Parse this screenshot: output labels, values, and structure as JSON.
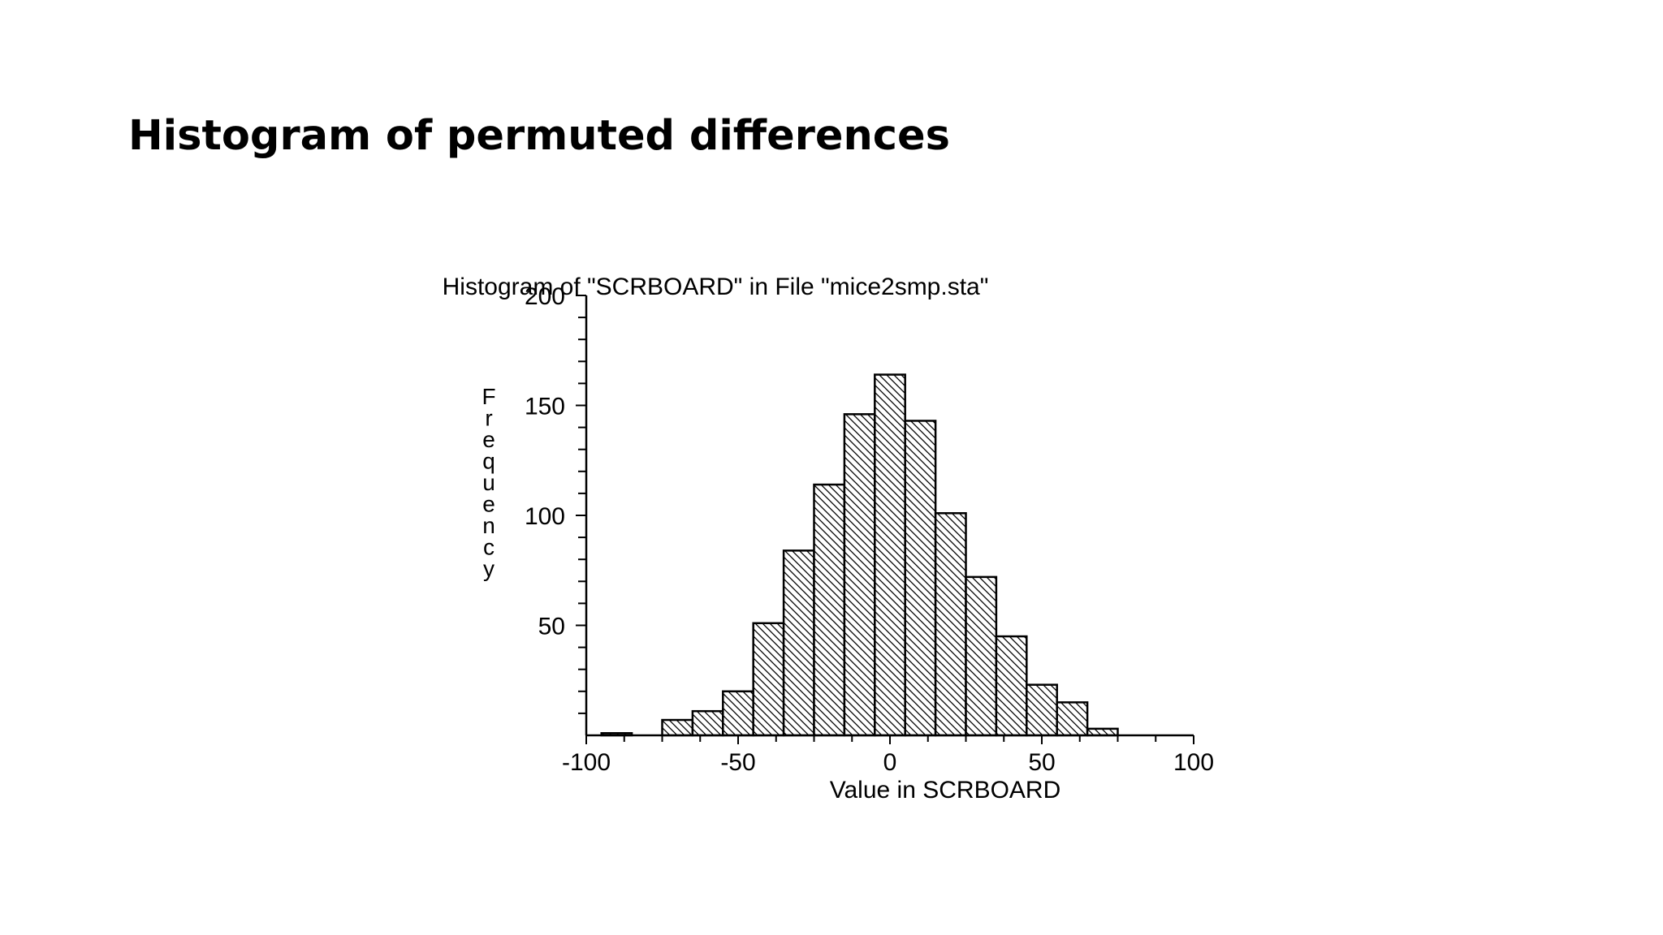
{
  "slide": {
    "title": "Histogram of permuted differences"
  },
  "chart_data": {
    "type": "bar",
    "title": "Histogram of \"SCRBOARD\" in File \"mice2smp.sta\"",
    "xlabel": "Value in SCRBOARD",
    "ylabel": "Frequency",
    "xlim": [
      -100,
      100
    ],
    "ylim": [
      0,
      200
    ],
    "x_ticks": [
      -100,
      -50,
      0,
      50,
      100
    ],
    "y_ticks": [
      50,
      100,
      150,
      200
    ],
    "bin_width": 10,
    "bins": [
      {
        "start": -95,
        "end": -85,
        "value": 1
      },
      {
        "start": -75,
        "end": -65,
        "value": 7
      },
      {
        "start": -65,
        "end": -55,
        "value": 11
      },
      {
        "start": -55,
        "end": -45,
        "value": 20
      },
      {
        "start": -45,
        "end": -35,
        "value": 51
      },
      {
        "start": -35,
        "end": -25,
        "value": 84
      },
      {
        "start": -25,
        "end": -15,
        "value": 114
      },
      {
        "start": -15,
        "end": -5,
        "value": 146
      },
      {
        "start": -5,
        "end": 5,
        "value": 164
      },
      {
        "start": 5,
        "end": 15,
        "value": 143
      },
      {
        "start": 15,
        "end": 25,
        "value": 101
      },
      {
        "start": 25,
        "end": 35,
        "value": 72
      },
      {
        "start": 35,
        "end": 45,
        "value": 45
      },
      {
        "start": 45,
        "end": 55,
        "value": 23
      },
      {
        "start": 55,
        "end": 65,
        "value": 15
      },
      {
        "start": 65,
        "end": 75,
        "value": 3
      }
    ],
    "fill_pattern": "diagonal-hatch",
    "grid": false,
    "legend": "none"
  }
}
